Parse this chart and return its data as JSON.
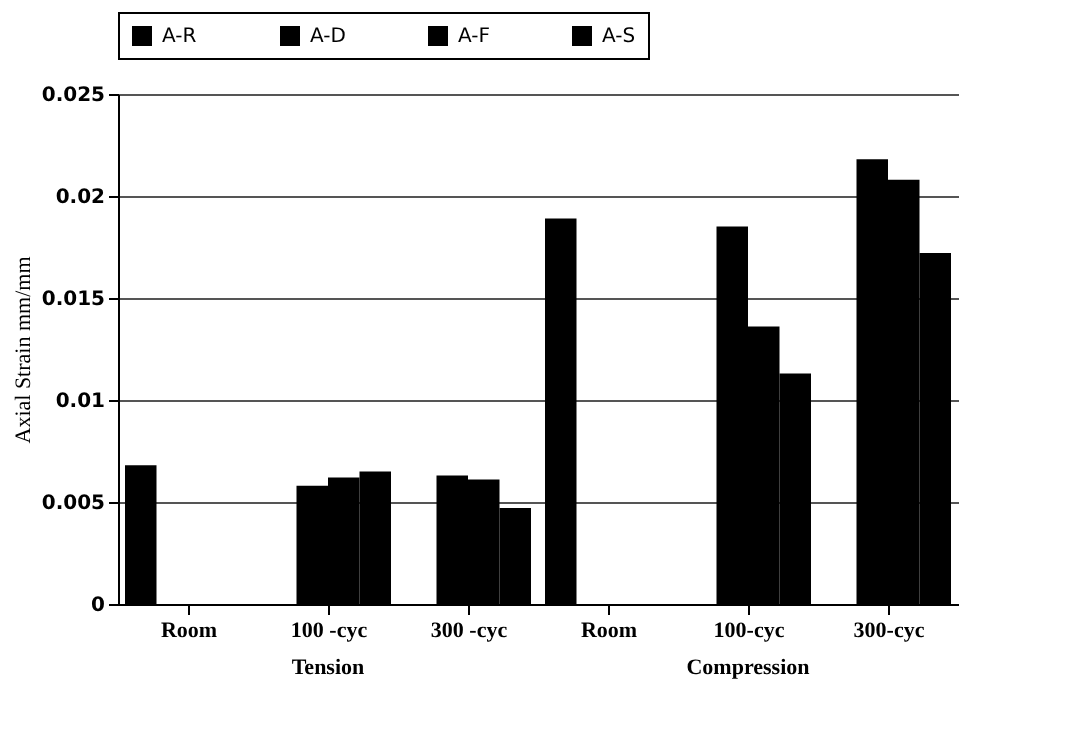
{
  "chart_data": {
    "type": "bar",
    "ylabel": "Axial Strain mm/mm",
    "categories": [
      "Room",
      "100 -cyc",
      "300 -cyc",
      "Room",
      "100-cyc",
      "300-cyc"
    ],
    "series": [
      {
        "name": "A-R",
        "color": "#000000",
        "values": [
          0.0068,
          null,
          null,
          0.0189,
          null,
          null
        ]
      },
      {
        "name": "A-D",
        "color": "#000000",
        "values": [
          null,
          0.0058,
          0.0063,
          null,
          0.0185,
          0.0218
        ]
      },
      {
        "name": "A-F",
        "color": "#000000",
        "values": [
          null,
          0.0062,
          0.0061,
          null,
          0.0136,
          0.0208
        ]
      },
      {
        "name": "A-S",
        "color": "#000000",
        "values": [
          null,
          0.0065,
          0.0047,
          null,
          0.0113,
          0.0172
        ]
      }
    ],
    "annotations": [
      "Tension",
      "Compression"
    ],
    "ylim": [
      0,
      0.025
    ],
    "yticks": [
      0,
      0.005,
      0.01,
      0.015,
      0.02,
      0.025
    ],
    "grid": "y",
    "legend": "top"
  }
}
